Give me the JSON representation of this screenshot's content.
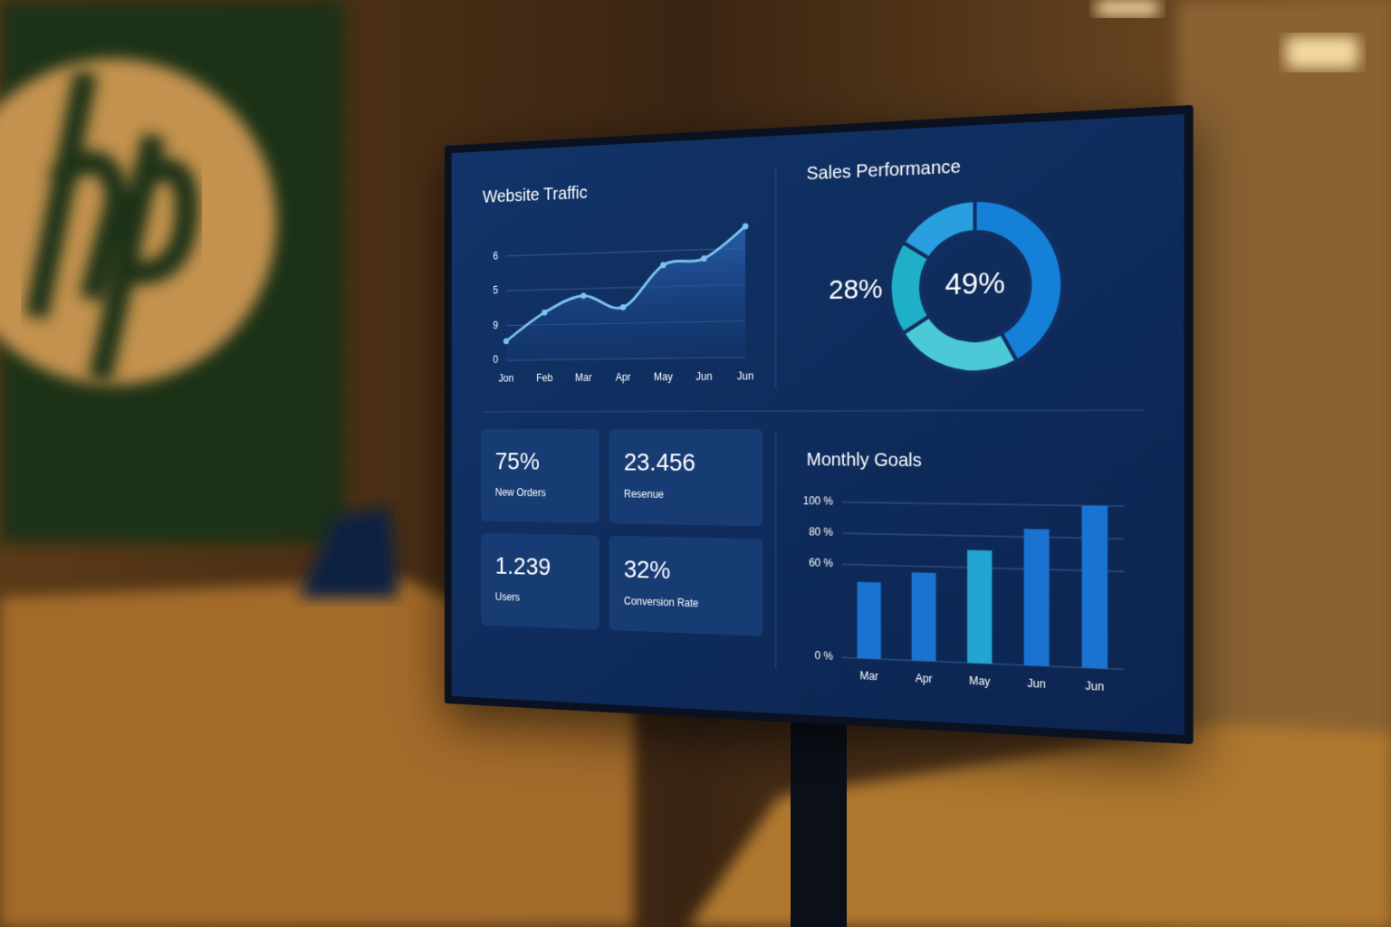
{
  "chart_data": [
    {
      "type": "line",
      "title": "Website Traffic",
      "categories": [
        "Jon",
        "Feb",
        "Mar",
        "Apr",
        "May",
        "Jun",
        "Jun"
      ],
      "values": [
        0.55,
        1.35,
        1.8,
        1.45,
        2.6,
        2.75,
        3.6
      ],
      "color": "#7cc4f0",
      "ylim": [
        0,
        3.7
      ],
      "yticks": [
        0,
        {
          "value": 1,
          "label": "9"
        },
        {
          "value": 2,
          "label": "5"
        },
        {
          "value": 3,
          "label": "6"
        }
      ],
      "grid": true
    },
    {
      "type": "pie",
      "title": "Sales Performance",
      "values": [
        42,
        24,
        18,
        16
      ],
      "colors": [
        "#1580d8",
        "#4cc9d6",
        "#1fb0c8",
        "#2a9fe0"
      ],
      "center_label": "49%",
      "side_label": "28%"
    },
    {
      "type": "bar",
      "title": "Monthly Goals",
      "categories": [
        "Mar",
        "Apr",
        "May",
        "Jun",
        "Jun"
      ],
      "values": [
        49,
        56,
        71,
        85,
        100
      ],
      "colors": [
        "#1a73d0",
        "#1a73d0",
        "#22a5d0",
        "#1a73d0",
        "#1a73d0"
      ],
      "ylim": [
        0,
        100
      ],
      "yticks": [
        {
          "value": 0,
          "label": "0 %"
        },
        {
          "value": 60,
          "label": "60 %"
        },
        {
          "value": 80,
          "label": "80 %"
        },
        {
          "value": 100,
          "label": "100 %"
        }
      ],
      "grid": true
    }
  ],
  "kpis": [
    {
      "value": "75%",
      "label": "New Orders"
    },
    {
      "value": "23.456",
      "label": "Resenue"
    },
    {
      "value": "1.239",
      "label": "Users"
    },
    {
      "value": "32%",
      "label": "Conversion Rate"
    }
  ]
}
